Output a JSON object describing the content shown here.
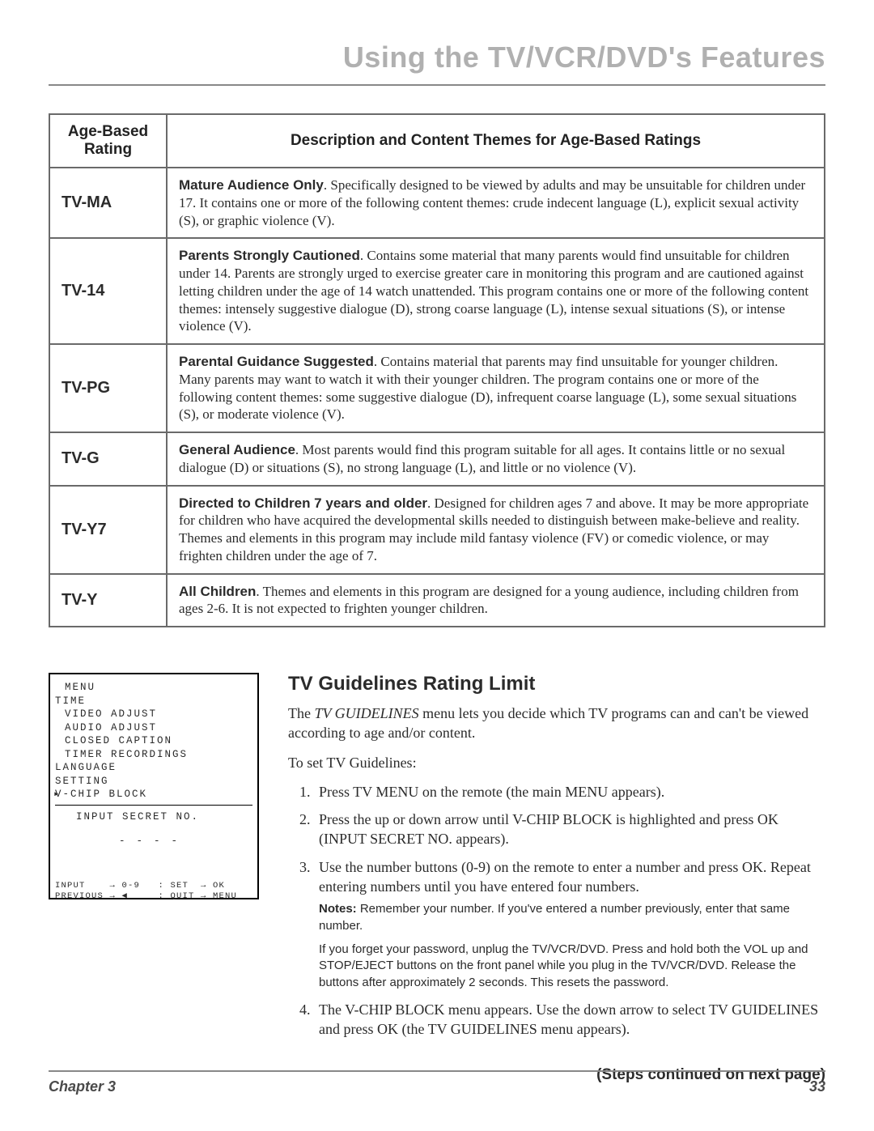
{
  "page_title": "Using the TV/VCR/DVD's Features",
  "table": {
    "header_rating": "Age-Based Rating",
    "header_desc": "Description and Content Themes for Age-Based Ratings",
    "rows": [
      {
        "rating": "TV-MA",
        "lead": "Mature Audience Only",
        "body": ". Specifically designed to be viewed by adults and may be unsuitable for children under 17.  It contains one or more of the following content themes:  crude indecent language (L), explicit sexual activity (S), or graphic violence (V)."
      },
      {
        "rating": "TV-14",
        "lead": "Parents Strongly Cautioned",
        "body": ". Contains some material that many parents would find unsuitable for children under 14.  Parents are strongly urged to exercise greater care in monitoring this program and are cautioned against letting children under the age of 14 watch unattended. This program contains one or more of the following content themes:  intensely suggestive dialogue (D), strong coarse language (L), intense sexual situations (S), or intense violence (V)."
      },
      {
        "rating": "TV-PG",
        "lead": "Parental Guidance Suggested",
        "body": ". Contains material that parents may find unsuitable for younger children.  Many parents may want to watch it with their younger children. The program contains one or more of the following content themes: some suggestive dialogue (D), infrequent coarse language (L), some sexual situations (S), or moderate violence (V)."
      },
      {
        "rating": "TV-G",
        "lead": "General Audience",
        "body": ". Most parents would find this program suitable for all ages. It contains little or no sexual dialogue (D) or situations (S), no strong language (L), and little or no violence (V)."
      },
      {
        "rating": "TV-Y7",
        "lead": "Directed to Children 7 years and older",
        "body": ". Designed for children ages 7 and above. It may be more appropriate for children who have acquired the developmental skills needed to distinguish between make-believe and reality.  Themes and elements in this program may include mild fantasy violence (FV) or comedic violence, or may frighten children under the age of 7."
      },
      {
        "rating": "TV-Y",
        "lead": "All Children",
        "body": ". Themes and elements in this program are designed for a young audience, including children from ages 2-6. It is not expected to frighten younger children."
      }
    ]
  },
  "osd": {
    "title": "MENU",
    "items": [
      "TIME",
      "VIDEO ADJUST",
      "AUDIO ADJUST",
      "CLOSED CAPTION",
      "TIMER RECORDINGS",
      "LANGUAGE",
      "SETTING",
      "V-CHIP BLOCK"
    ],
    "selected_index": 7,
    "sub": "INPUT SECRET NO.",
    "dashes": "----",
    "hint1": "INPUT    → 0-9   : SET  → OK",
    "hint2": "PREVIOUS → ◀     : QUIT → MENU"
  },
  "guide": {
    "heading": "TV Guidelines Rating Limit",
    "intro_a": "The ",
    "intro_ital": "TV GUIDELINES",
    "intro_b": " menu lets you decide which TV programs can and can't be viewed according to age and/or content.",
    "toset": "To set TV Guidelines:",
    "steps": [
      {
        "pre": "Press TV MENU on the remote (the main ",
        "ital": "MENU",
        "post": " appears)."
      },
      {
        "pre": "Press the up or down arrow until ",
        "ital": "V-CHIP BLOCK",
        "post": " is highlighted and press OK (",
        "ital2": "INPUT SECRET NO.",
        "post2": " appears)."
      },
      {
        "pre": "Use the number buttons (0-9) on the remote to enter a number and press OK. Repeat entering numbers until you have entered four numbers.",
        "ital": "",
        "post": ""
      },
      {
        "pre": "The ",
        "ital": "V-CHIP BLOCK",
        "post": " menu appears. Use the down arrow to select ",
        "ital2": "TV GUIDELINES",
        "post2": " and press OK (the ",
        "ital3": "TV GUIDELINES",
        "post3": " menu appears)."
      }
    ],
    "note1_label": "Notes:",
    "note1": " Remember your number. If you've entered a number previously, enter that same number.",
    "note2": "If you forget your password, unplug the TV/VCR/DVD. Press and hold both the VOL up and STOP/EJECT buttons on the front panel while you plug in the TV/VCR/DVD. Release the buttons after approximately 2 seconds. This resets the password.",
    "continued": "(Steps continued on next page)"
  },
  "footer": {
    "chapter": "Chapter 3",
    "page": "33"
  }
}
